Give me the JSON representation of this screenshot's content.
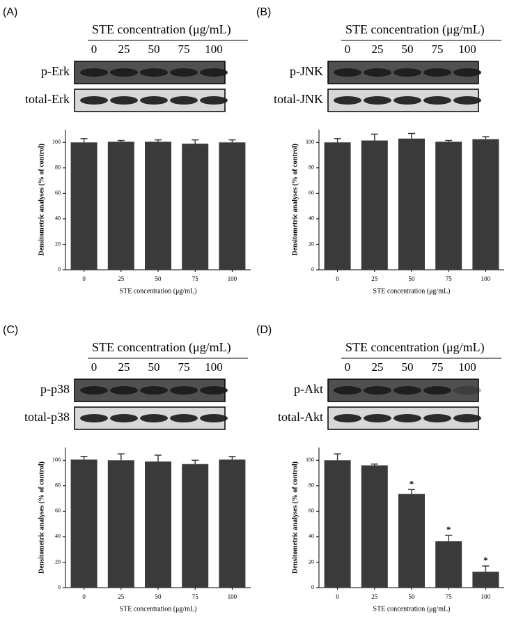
{
  "chart_data": [
    {
      "type": "bar",
      "panel": "(A)",
      "blot_title": "STE concentration (μg/mL)",
      "blot_rows": [
        "p-Erk",
        "total-Erk"
      ],
      "categories": [
        "0",
        "25",
        "50",
        "75",
        "100"
      ],
      "values": [
        100,
        100.5,
        100.5,
        99,
        100
      ],
      "errors": [
        3,
        1,
        1.5,
        3,
        2
      ],
      "x_label": "STE concentration (μg/mL)",
      "y_label": "Densitometric analyses (% of control)",
      "ylim": [
        0,
        110
      ],
      "yticks": [
        0,
        20,
        40,
        60,
        80,
        100
      ],
      "color": "#3a3a3a"
    },
    {
      "type": "bar",
      "panel": "(B)",
      "blot_title": "STE concentration (μg/mL)",
      "blot_rows": [
        "p-JNK",
        "total-JNK"
      ],
      "categories": [
        "0",
        "25",
        "50",
        "75",
        "100"
      ],
      "values": [
        100,
        101.5,
        103,
        100.5,
        102.5
      ],
      "errors": [
        3,
        5,
        4,
        1,
        2
      ],
      "x_label": "STE concentration (μg/mL)",
      "y_label": "Densitometric analyses (% of control)",
      "ylim": [
        0,
        110
      ],
      "yticks": [
        0,
        20,
        40,
        60,
        80,
        100
      ],
      "color": "#3a3a3a"
    },
    {
      "type": "bar",
      "panel": "(C)",
      "blot_title": "STE concentration (μg/mL)",
      "blot_rows": [
        "p-p38",
        "total-p38"
      ],
      "categories": [
        "0",
        "25",
        "50",
        "75",
        "100"
      ],
      "values": [
        100.5,
        100,
        99,
        97,
        100.5
      ],
      "errors": [
        2.5,
        5,
        5,
        3,
        2.5
      ],
      "x_label": "STE concentration (μg/mL)",
      "y_label": "Densitometric analyses (% of control)",
      "ylim": [
        0,
        110
      ],
      "yticks": [
        0,
        20,
        40,
        60,
        80,
        100
      ],
      "color": "#3a3a3a"
    },
    {
      "type": "bar",
      "panel": "(D)",
      "blot_title": "STE concentration (μg/mL)",
      "blot_rows": [
        "p-Akt",
        "total-Akt"
      ],
      "categories": [
        "0",
        "25",
        "50",
        "75",
        "100"
      ],
      "values": [
        100,
        96,
        73.5,
        36.5,
        12.5
      ],
      "errors": [
        5,
        1,
        3.5,
        4.5,
        4.5
      ],
      "significance": [
        null,
        null,
        "*",
        "*",
        "*"
      ],
      "x_label": "STE concentration (μg/mL)",
      "y_label": "Densitometric analyses (% of control)",
      "ylim": [
        0,
        110
      ],
      "yticks": [
        0,
        20,
        40,
        60,
        80,
        100
      ],
      "color": "#3a3a3a"
    }
  ]
}
